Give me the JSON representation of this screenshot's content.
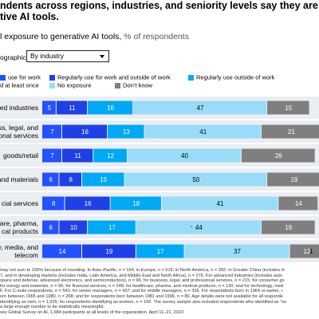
{
  "headline": [
    "ndents across regions, industries, and seniority levels say they are alread",
    "tive AI tools."
  ],
  "subtitle": {
    "text": "l exposure to generative AI tools,",
    "unit": " % of respondents"
  },
  "filter": {
    "label": "ographic",
    "selected": "By industry"
  },
  "legend": [
    {
      "label": "use for work",
      "color": "#2251ff"
    },
    {
      "label": "Regularly use for work and outside of work",
      "color": "#1f40e6"
    },
    {
      "label": "Regularly use outside of work",
      "color": "#00a9f4"
    },
    {
      "label": "d at least once",
      "color": "#051c2c"
    },
    {
      "label": "No exposure",
      "color": "#99dcf7"
    },
    {
      "label": "Don’t know",
      "color": "#7f7f7f"
    }
  ],
  "colors": {
    "row_bg": "#eaeef3",
    "white_text": "#ffffff",
    "dark_text": "#000000",
    "dot": "#e5546c"
  },
  "chart_data": {
    "type": "bar",
    "orientation": "horizontal",
    "stacked": true,
    "categories": [
      [
        "ed industries"
      ],
      [
        "ss, legal, and",
        "onal services"
      ],
      [
        "goods/retail"
      ],
      [
        "and materials"
      ],
      [
        "cial services"
      ],
      [
        "are, pharma,",
        "cal products"
      ],
      [
        "y, media, and",
        "telecom"
      ]
    ],
    "series": [
      {
        "name": "Regularly use for work and outside of work",
        "color": "#2251ff",
        "values": [
          5,
          7,
          7,
          6,
          8,
          6,
          14
        ]
      },
      {
        "name": "",
        "color": "#1f40e6",
        "values": [
          11,
          16,
          11,
          8,
          16,
          10,
          19
        ]
      },
      {
        "name": "Regularly use outside of work",
        "color": "#00a9f4",
        "values": [
          16,
          13,
          12,
          15,
          18,
          17,
          17
        ]
      },
      {
        "name": "No exposure",
        "color": "#99dcf7",
        "values": [
          47,
          41,
          40,
          50,
          41,
          44,
          37
        ]
      },
      {
        "name": "Don’t know",
        "color": "#7f7f7f",
        "values": [
          15,
          21,
          26,
          19,
          14,
          19,
          12
        ]
      }
    ],
    "cut_label": [
      "",
      "",
      "",
      "",
      "",
      "",
      "1"
    ]
  },
  "notes": [
    "may not sum to 100% because of rounding. In Asia–Pacific, n = 164; in Europe, n = 515; in North America, n = 392; in Greater China (includes H",
    "7, and in developing markets (includes India, Latin America, and Middle East and North Africa), n = 276. For advanced industries (includes auto",
    "space and defense, advanced electronics, and semiconductors), n = 96; for business, legal, and professional services, n = 215; for consumer go",
    "for energy and materials, n = 96; for financial services, n = 248; for healthcare, pharma, and medical products, n = 130; and for technology, med",
    "F. For C-suite respondents, n = 541; for senior managers, n = 437; and for middle managers, n = 339. For respondents born in 1964 or earlier, r",
    "orn between 1965 and 1980, n = 268; and for respondents born between 1981 and 1996, n = 80. Age details were not available for all responde",
    "identifying as men, n = 1,025; for respondents identifying as women, n = 156. The survey sample also included respondents who identified as “no",
    "a large enough number to be statistically meaningful.",
    "sey Global Survey on AI, 1,684 participants at all levels of the organization, April 11–21, 2023"
  ]
}
